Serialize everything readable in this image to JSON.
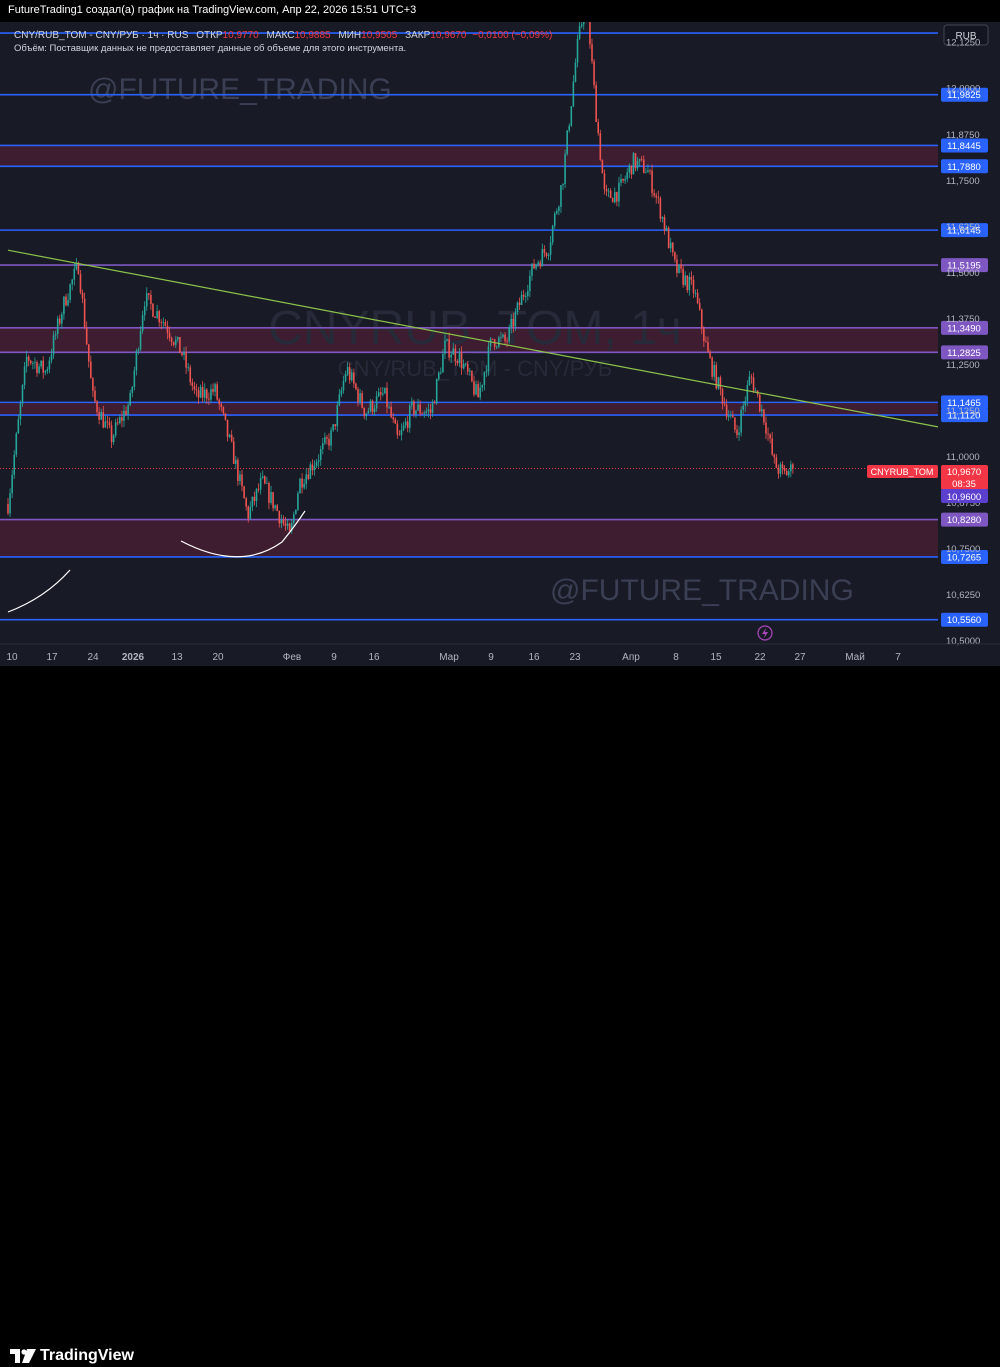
{
  "header": {
    "caption": "FutureTrading1 создал(а) график на TradingView.com, Апр 22, 2026 15:51 UTC+3"
  },
  "legend": {
    "symbol": "CNY/RUB_TOM - CNY/РУБ · 1ч · RUS",
    "open_label": "ОТКР",
    "open_value": "10,9770",
    "high_label": "МАКС",
    "high_value": "10,9885",
    "low_label": "МИН",
    "low_value": "10,9505",
    "close_label": "ЗАКР",
    "close_value": "10,9670",
    "change": "−0,0100 (−0,09%)",
    "volume_note": "Объём: Поставщик данных не предоставляет данные об объеме для этого инструмента."
  },
  "currency": "RUB",
  "watermarks": {
    "author_top": "@FUTURE_TRADING",
    "author_bottom": "@FUTURE_TRADING",
    "ticker": "CNYRUB_TOM, 1ч",
    "ticker_sub": "CNY/RUB_TOM - CNY/РУБ"
  },
  "price_tag": {
    "symbol_label": "CNYRUB_TOM",
    "price": "10,9670",
    "countdown": "08:35",
    "low_mark": "10,9600"
  },
  "footer": {
    "brand": "TradingView"
  },
  "colors": {
    "background": "#181a25",
    "level_blue": "#2962ff",
    "level_purple": "#7e57c2",
    "zone_fill": "#4a1f33",
    "trendline": "#8bc34a",
    "candle_up": "#26a69a",
    "candle_down": "#ef5350",
    "price_tag": "#f23645"
  },
  "chart_data": {
    "type": "candlestick",
    "symbol": "CNYRUB_TOM",
    "interval": "1ч",
    "ylim": [
      10.49,
      12.18
    ],
    "y_ticks": [
      "12,1250",
      "12,0000",
      "11,8750",
      "11,7500",
      "11,6250",
      "11,5000",
      "11,3750",
      "11,2500",
      "11,1250",
      "11,0000",
      "10,8750",
      "10,7500",
      "10,6250",
      "10,5000"
    ],
    "x_ticks": [
      "10",
      "17",
      "24",
      "2026",
      "13",
      "20",
      "Фев",
      "9",
      "16",
      "Мар",
      "9",
      "16",
      "23",
      "Апр",
      "8",
      "15",
      "22",
      "27",
      "Май",
      "7"
    ],
    "horizontal_levels": [
      {
        "value": 12.15,
        "label": "",
        "color": "blue"
      },
      {
        "value": 11.9825,
        "label": "11,9825",
        "color": "blue"
      },
      {
        "value": 11.8445,
        "label": "11,8445",
        "color": "blue"
      },
      {
        "value": 11.788,
        "label": "11,7880",
        "color": "blue"
      },
      {
        "value": 11.6145,
        "label": "11,6145",
        "color": "blue"
      },
      {
        "value": 11.5195,
        "label": "11,5195",
        "color": "purple"
      },
      {
        "value": 11.349,
        "label": "11,3490",
        "color": "purple"
      },
      {
        "value": 11.2825,
        "label": "11,2825",
        "color": "purple"
      },
      {
        "value": 11.1465,
        "label": "11,1465",
        "color": "blue"
      },
      {
        "value": 11.112,
        "label": "11,1120",
        "color": "blue"
      },
      {
        "value": 10.828,
        "label": "10,8280",
        "color": "purple"
      },
      {
        "value": 10.7265,
        "label": "10,7265",
        "color": "blue"
      },
      {
        "value": 10.556,
        "label": "10,5560",
        "color": "blue"
      }
    ],
    "zones": [
      [
        11.788,
        11.8445
      ],
      [
        11.2825,
        11.349
      ],
      [
        11.112,
        11.1465
      ],
      [
        10.7265,
        10.828
      ]
    ],
    "trendline": {
      "start": {
        "x": "Jan 10",
        "y": 11.56
      },
      "end": {
        "x": "Apr 30",
        "y": 11.08
      }
    },
    "current_price": 10.967,
    "price_path": [
      [
        0.0,
        10.87
      ],
      [
        0.02,
        11.27
      ],
      [
        0.04,
        11.23
      ],
      [
        0.06,
        11.42
      ],
      [
        0.075,
        11.52
      ],
      [
        0.09,
        11.16
      ],
      [
        0.11,
        11.05
      ],
      [
        0.13,
        11.15
      ],
      [
        0.145,
        11.43
      ],
      [
        0.165,
        11.37
      ],
      [
        0.185,
        11.28
      ],
      [
        0.2,
        11.16
      ],
      [
        0.22,
        11.18
      ],
      [
        0.24,
        11.0
      ],
      [
        0.255,
        10.84
      ],
      [
        0.27,
        10.93
      ],
      [
        0.285,
        10.86
      ],
      [
        0.3,
        10.78
      ],
      [
        0.31,
        10.93
      ],
      [
        0.33,
        11.0
      ],
      [
        0.345,
        11.06
      ],
      [
        0.36,
        11.24
      ],
      [
        0.38,
        11.12
      ],
      [
        0.4,
        11.17
      ],
      [
        0.415,
        11.04
      ],
      [
        0.43,
        11.13
      ],
      [
        0.45,
        11.12
      ],
      [
        0.465,
        11.3
      ],
      [
        0.48,
        11.27
      ],
      [
        0.5,
        11.16
      ],
      [
        0.515,
        11.32
      ],
      [
        0.53,
        11.31
      ],
      [
        0.545,
        11.42
      ],
      [
        0.56,
        11.52
      ],
      [
        0.575,
        11.57
      ],
      [
        0.59,
        11.75
      ],
      [
        0.605,
        12.1
      ],
      [
        0.615,
        12.25
      ],
      [
        0.625,
        11.95
      ],
      [
        0.635,
        11.7
      ],
      [
        0.65,
        11.72
      ],
      [
        0.665,
        11.8
      ],
      [
        0.68,
        11.78
      ],
      [
        0.695,
        11.66
      ],
      [
        0.71,
        11.51
      ],
      [
        0.73,
        11.45
      ],
      [
        0.745,
        11.27
      ],
      [
        0.76,
        11.16
      ],
      [
        0.775,
        11.06
      ],
      [
        0.79,
        11.22
      ],
      [
        0.805,
        11.1
      ],
      [
        0.815,
        10.98
      ],
      [
        0.825,
        10.95
      ],
      [
        0.835,
        10.967
      ]
    ]
  }
}
